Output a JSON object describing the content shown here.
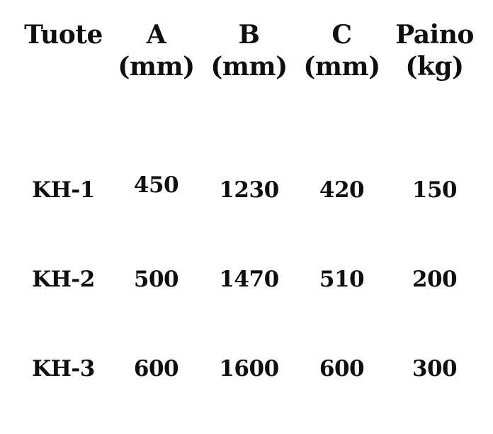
{
  "colors": {
    "text": "#0f0f0f",
    "background": "#ffffff"
  },
  "table": {
    "columns": [
      {
        "label": "Tuote",
        "unit": ""
      },
      {
        "label": "A",
        "unit": "(mm)"
      },
      {
        "label": "B",
        "unit": "(mm)"
      },
      {
        "label": "C",
        "unit": "(mm)"
      },
      {
        "label": "Paino",
        "unit": "(kg)"
      }
    ],
    "rows": [
      {
        "cells": [
          "KH-1",
          "450",
          "1230",
          "420",
          "150"
        ]
      },
      {
        "cells": [
          "KH-2",
          "500",
          "1470",
          "510",
          "200"
        ]
      },
      {
        "cells": [
          "KH-3",
          "600",
          "1600",
          "600",
          "300"
        ]
      }
    ]
  },
  "chart_data": {
    "type": "table",
    "columns": [
      "Tuote",
      "A (mm)",
      "B (mm)",
      "C (mm)",
      "Paino (kg)"
    ],
    "rows": [
      [
        "KH-1",
        450,
        1230,
        420,
        150
      ],
      [
        "KH-2",
        500,
        1470,
        510,
        200
      ],
      [
        "KH-3",
        600,
        1600,
        600,
        300
      ]
    ]
  }
}
